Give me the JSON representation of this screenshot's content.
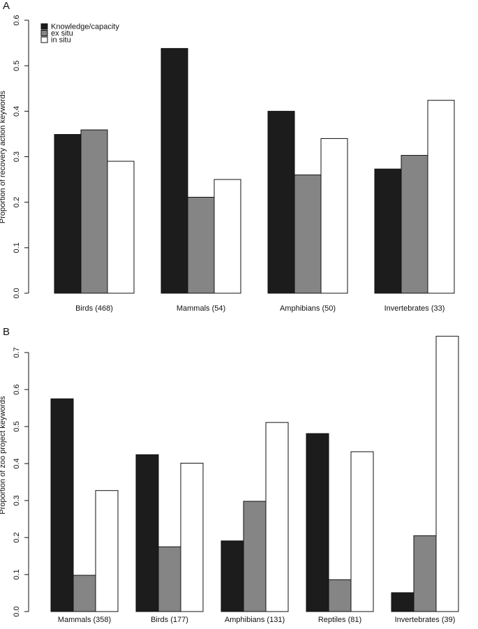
{
  "colors": {
    "knowledge": "#1c1c1c",
    "ex_situ": "#858585",
    "in_situ": "#ffffff",
    "axis": "#111111"
  },
  "chart_data": [
    {
      "panel": "A",
      "type": "bar",
      "ylabel": "Proportion of recovery action keywords",
      "ylim": [
        0,
        0.6
      ],
      "yticks": [
        "0.0",
        "0.1",
        "0.2",
        "0.3",
        "0.4",
        "0.5",
        "0.6"
      ],
      "categories": [
        "Birds (468)",
        "Mammals (54)",
        "Amphibians (50)",
        "Invertebrates (33)"
      ],
      "legend": {
        "position": "top-left",
        "entries": [
          "Knowledge/capacity",
          "ex situ",
          "in situ"
        ]
      },
      "series": [
        {
          "name": "Knowledge/capacity",
          "values": [
            0.349,
            0.538,
            0.4,
            0.273
          ]
        },
        {
          "name": "ex situ",
          "values": [
            0.359,
            0.211,
            0.26,
            0.303
          ]
        },
        {
          "name": "in situ",
          "values": [
            0.29,
            0.25,
            0.34,
            0.424
          ]
        }
      ]
    },
    {
      "panel": "B",
      "type": "bar",
      "ylabel": "Proportion of zoo project keywords",
      "ylim": [
        0,
        0.7
      ],
      "yticks": [
        "0.0",
        "0.1",
        "0.2",
        "0.3",
        "0.4",
        "0.5",
        "0.6",
        "0.7"
      ],
      "categories": [
        "Mammals (358)",
        "Birds (177)",
        "Amphibians (131)",
        "Reptiles (81)",
        "Invertebrates (39)"
      ],
      "series": [
        {
          "name": "Knowledge/capacity",
          "values": [
            0.575,
            0.424,
            0.191,
            0.481,
            0.051
          ]
        },
        {
          "name": "ex situ",
          "values": [
            0.098,
            0.175,
            0.298,
            0.086,
            0.205
          ]
        },
        {
          "name": "in situ",
          "values": [
            0.327,
            0.401,
            0.511,
            0.432,
            0.744
          ]
        }
      ]
    }
  ]
}
